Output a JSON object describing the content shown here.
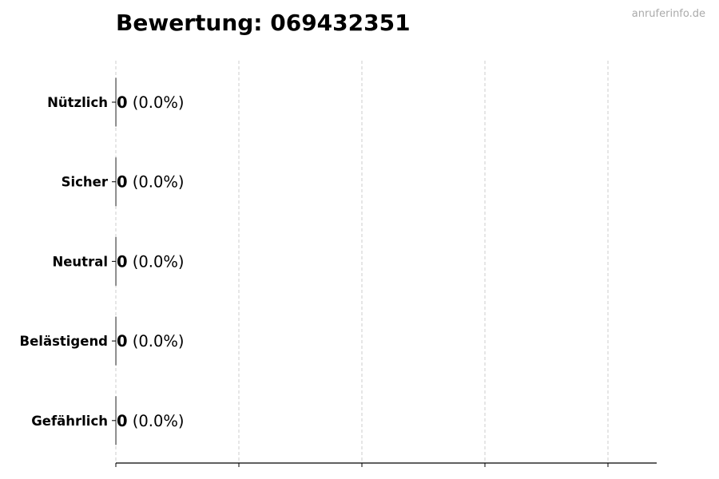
{
  "chart_data": {
    "type": "bar",
    "orientation": "horizontal",
    "title": "Bewertung: 069432351",
    "watermark": "anruferinfo.de",
    "categories": [
      "Nützlich",
      "Sicher",
      "Neutral",
      "Belästigend",
      "Gefährlich"
    ],
    "values": [
      0,
      0,
      0,
      0,
      0
    ],
    "value_labels": [
      "0",
      "0",
      "0",
      "0",
      "0"
    ],
    "percent_labels": [
      "(0.0%)",
      "(0.0%)",
      "(0.0%)",
      "(0.0%)",
      "(0.0%)"
    ],
    "xlabel": "",
    "ylabel": "",
    "x_tick_labels_shown": false,
    "grid": "vertical dashed",
    "colors": {
      "bar_edge": "#333333",
      "grid": "#cccccc",
      "axis": "#000000",
      "watermark": "#aaaaaa"
    }
  }
}
